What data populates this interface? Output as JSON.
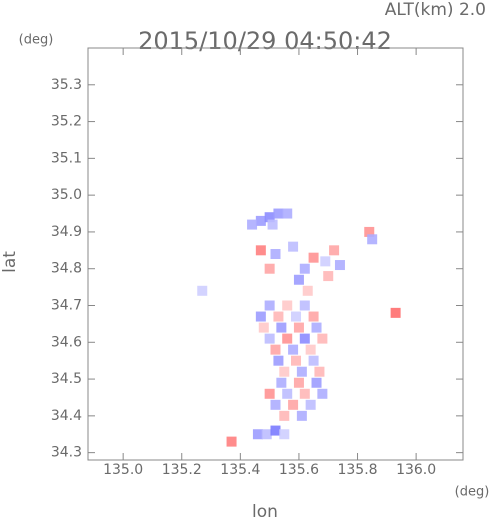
{
  "chart_data": {
    "type": "scatter",
    "annotation": "ALT(km) 2.0",
    "title": "2015/10/29 04:50:42",
    "y_unit": "(deg)",
    "x_unit": "(deg)",
    "xlabel": "lon",
    "ylabel": "lat",
    "xlim": [
      134.88,
      136.16
    ],
    "ylim": [
      34.28,
      35.4
    ],
    "xticks": [
      {
        "value": 135,
        "label": "135.0"
      },
      135.2,
      135.4,
      135.6,
      135.8,
      {
        "value": 136,
        "label": "136.0"
      }
    ],
    "yticks": [
      34.3,
      34.4,
      34.5,
      34.6,
      34.7,
      34.8,
      34.9,
      {
        "value": 35,
        "label": "35.0"
      },
      35.1,
      35.2,
      35.3
    ],
    "colormap": [
      "#5a5aff",
      "#ffffff",
      "#ff4a4a"
    ],
    "x": [
      135.47,
      135.5,
      135.53,
      135.56,
      135.44,
      135.51,
      135.47,
      135.52,
      135.5,
      135.58,
      135.62,
      135.65,
      135.69,
      135.72,
      135.74,
      135.7,
      135.6,
      135.84,
      135.85,
      135.63,
      135.5,
      135.56,
      135.62,
      135.47,
      135.53,
      135.59,
      135.65,
      135.48,
      135.54,
      135.6,
      135.66,
      135.5,
      135.56,
      135.62,
      135.68,
      135.52,
      135.58,
      135.64,
      135.53,
      135.59,
      135.65,
      135.55,
      135.61,
      135.67,
      135.54,
      135.6,
      135.66,
      135.5,
      135.56,
      135.62,
      135.68,
      135.52,
      135.58,
      135.64,
      135.55,
      135.61,
      135.46,
      135.49,
      135.52,
      135.55,
      135.37,
      135.93,
      135.27
    ],
    "y": [
      34.93,
      34.94,
      34.95,
      34.95,
      34.92,
      34.92,
      34.85,
      34.84,
      34.8,
      34.86,
      34.8,
      34.83,
      34.82,
      34.85,
      34.81,
      34.78,
      34.77,
      34.9,
      34.88,
      34.74,
      34.7,
      34.7,
      34.7,
      34.67,
      34.67,
      34.67,
      34.67,
      34.64,
      34.64,
      34.64,
      34.64,
      34.61,
      34.61,
      34.61,
      34.61,
      34.58,
      34.58,
      34.58,
      34.55,
      34.55,
      34.55,
      34.52,
      34.52,
      34.52,
      34.49,
      34.49,
      34.49,
      34.46,
      34.46,
      34.46,
      34.46,
      34.43,
      34.43,
      34.43,
      34.4,
      34.4,
      34.35,
      34.35,
      34.36,
      34.35,
      34.33,
      34.68,
      34.74
    ],
    "values": [
      -0.6,
      -0.7,
      -0.6,
      -0.5,
      -0.5,
      -0.4,
      0.7,
      -0.5,
      0.5,
      -0.4,
      -0.5,
      0.6,
      -0.3,
      0.5,
      -0.5,
      0.4,
      -0.6,
      0.6,
      -0.5,
      0.3,
      -0.5,
      0.3,
      -0.4,
      -0.6,
      0.4,
      -0.3,
      0.5,
      0.3,
      -0.6,
      0.5,
      -0.5,
      -0.4,
      0.6,
      -0.7,
      0.4,
      0.5,
      -0.5,
      0.3,
      -0.6,
      0.4,
      -0.4,
      0.3,
      -0.5,
      0.4,
      -0.5,
      0.5,
      -0.6,
      0.6,
      -0.4,
      0.4,
      -0.5,
      -0.5,
      0.5,
      -0.4,
      0.4,
      -0.5,
      -0.6,
      -0.4,
      -0.8,
      -0.3,
      0.7,
      0.8,
      -0.3
    ]
  }
}
